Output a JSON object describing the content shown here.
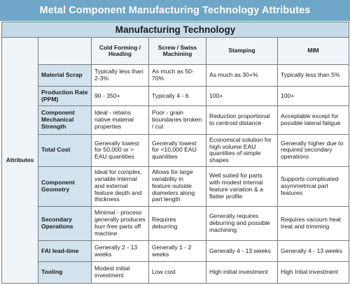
{
  "title": "Metal Component Manufacturing Technology Attributes",
  "section_header": "Manufacturing Technology",
  "attributes_label": "Attributes",
  "columns": [
    "Cold Forming / Heading",
    "Screw / Swiss Machining",
    "Stamping",
    "MIM"
  ],
  "rows": [
    {
      "label": "Material Scrap",
      "cells": [
        "Typically less than 2-3%",
        "As much as 50-70%",
        "As much as 30+%",
        "Typically less than 5%"
      ]
    },
    {
      "label": "Production Rate (PPM)",
      "cells": [
        "90 - 350+",
        "Typically 4 - 6",
        "100+",
        "100+"
      ]
    },
    {
      "label": "Component Mechanical Strength",
      "cells": [
        "Ideal - retains native material properties",
        "Poor - grain boundaries broken / cut",
        "Reduction proportional to centroid distance",
        "Acceptable except for possible lateral fatigue"
      ]
    },
    {
      "label": "Total Cost",
      "cells": [
        "Generally lowest for 50,000 or > EAU quantities",
        "Generally lowest for <10,000 EAU quantities",
        "Economical solution for high volume EAU quantities of simple shapes",
        "Generally higher due to required secondary operations"
      ]
    },
    {
      "label": "Component Geometry",
      "cells": [
        "Ideal for complex, variable internal and external feature depth and thickness",
        "Allows for large variability in feature outside diameters along part length",
        "Well suited for parts with modest internal feature variation & a flatter profile",
        "Supports complicated asymmetrical part features"
      ]
    },
    {
      "label": "Secondary Operations",
      "cells": [
        "Minimal - process generally produces burr-free parts off machine",
        "Requires deburring",
        "Generally requires deburring and possible machining",
        "Requires vacuum heat treat and trimming"
      ]
    },
    {
      "label": "FAI lead-time",
      "cells": [
        "Generally 2 - 13 weeks",
        "Generally 1 - 2 weeks",
        "Generally 4 - 13 weeks",
        "Generally 4 - 13 weeks"
      ]
    },
    {
      "label": "Tooling",
      "cells": [
        "Modest initial investment",
        "Low cost",
        "High initial investment",
        "High Intial investment"
      ]
    }
  ]
}
